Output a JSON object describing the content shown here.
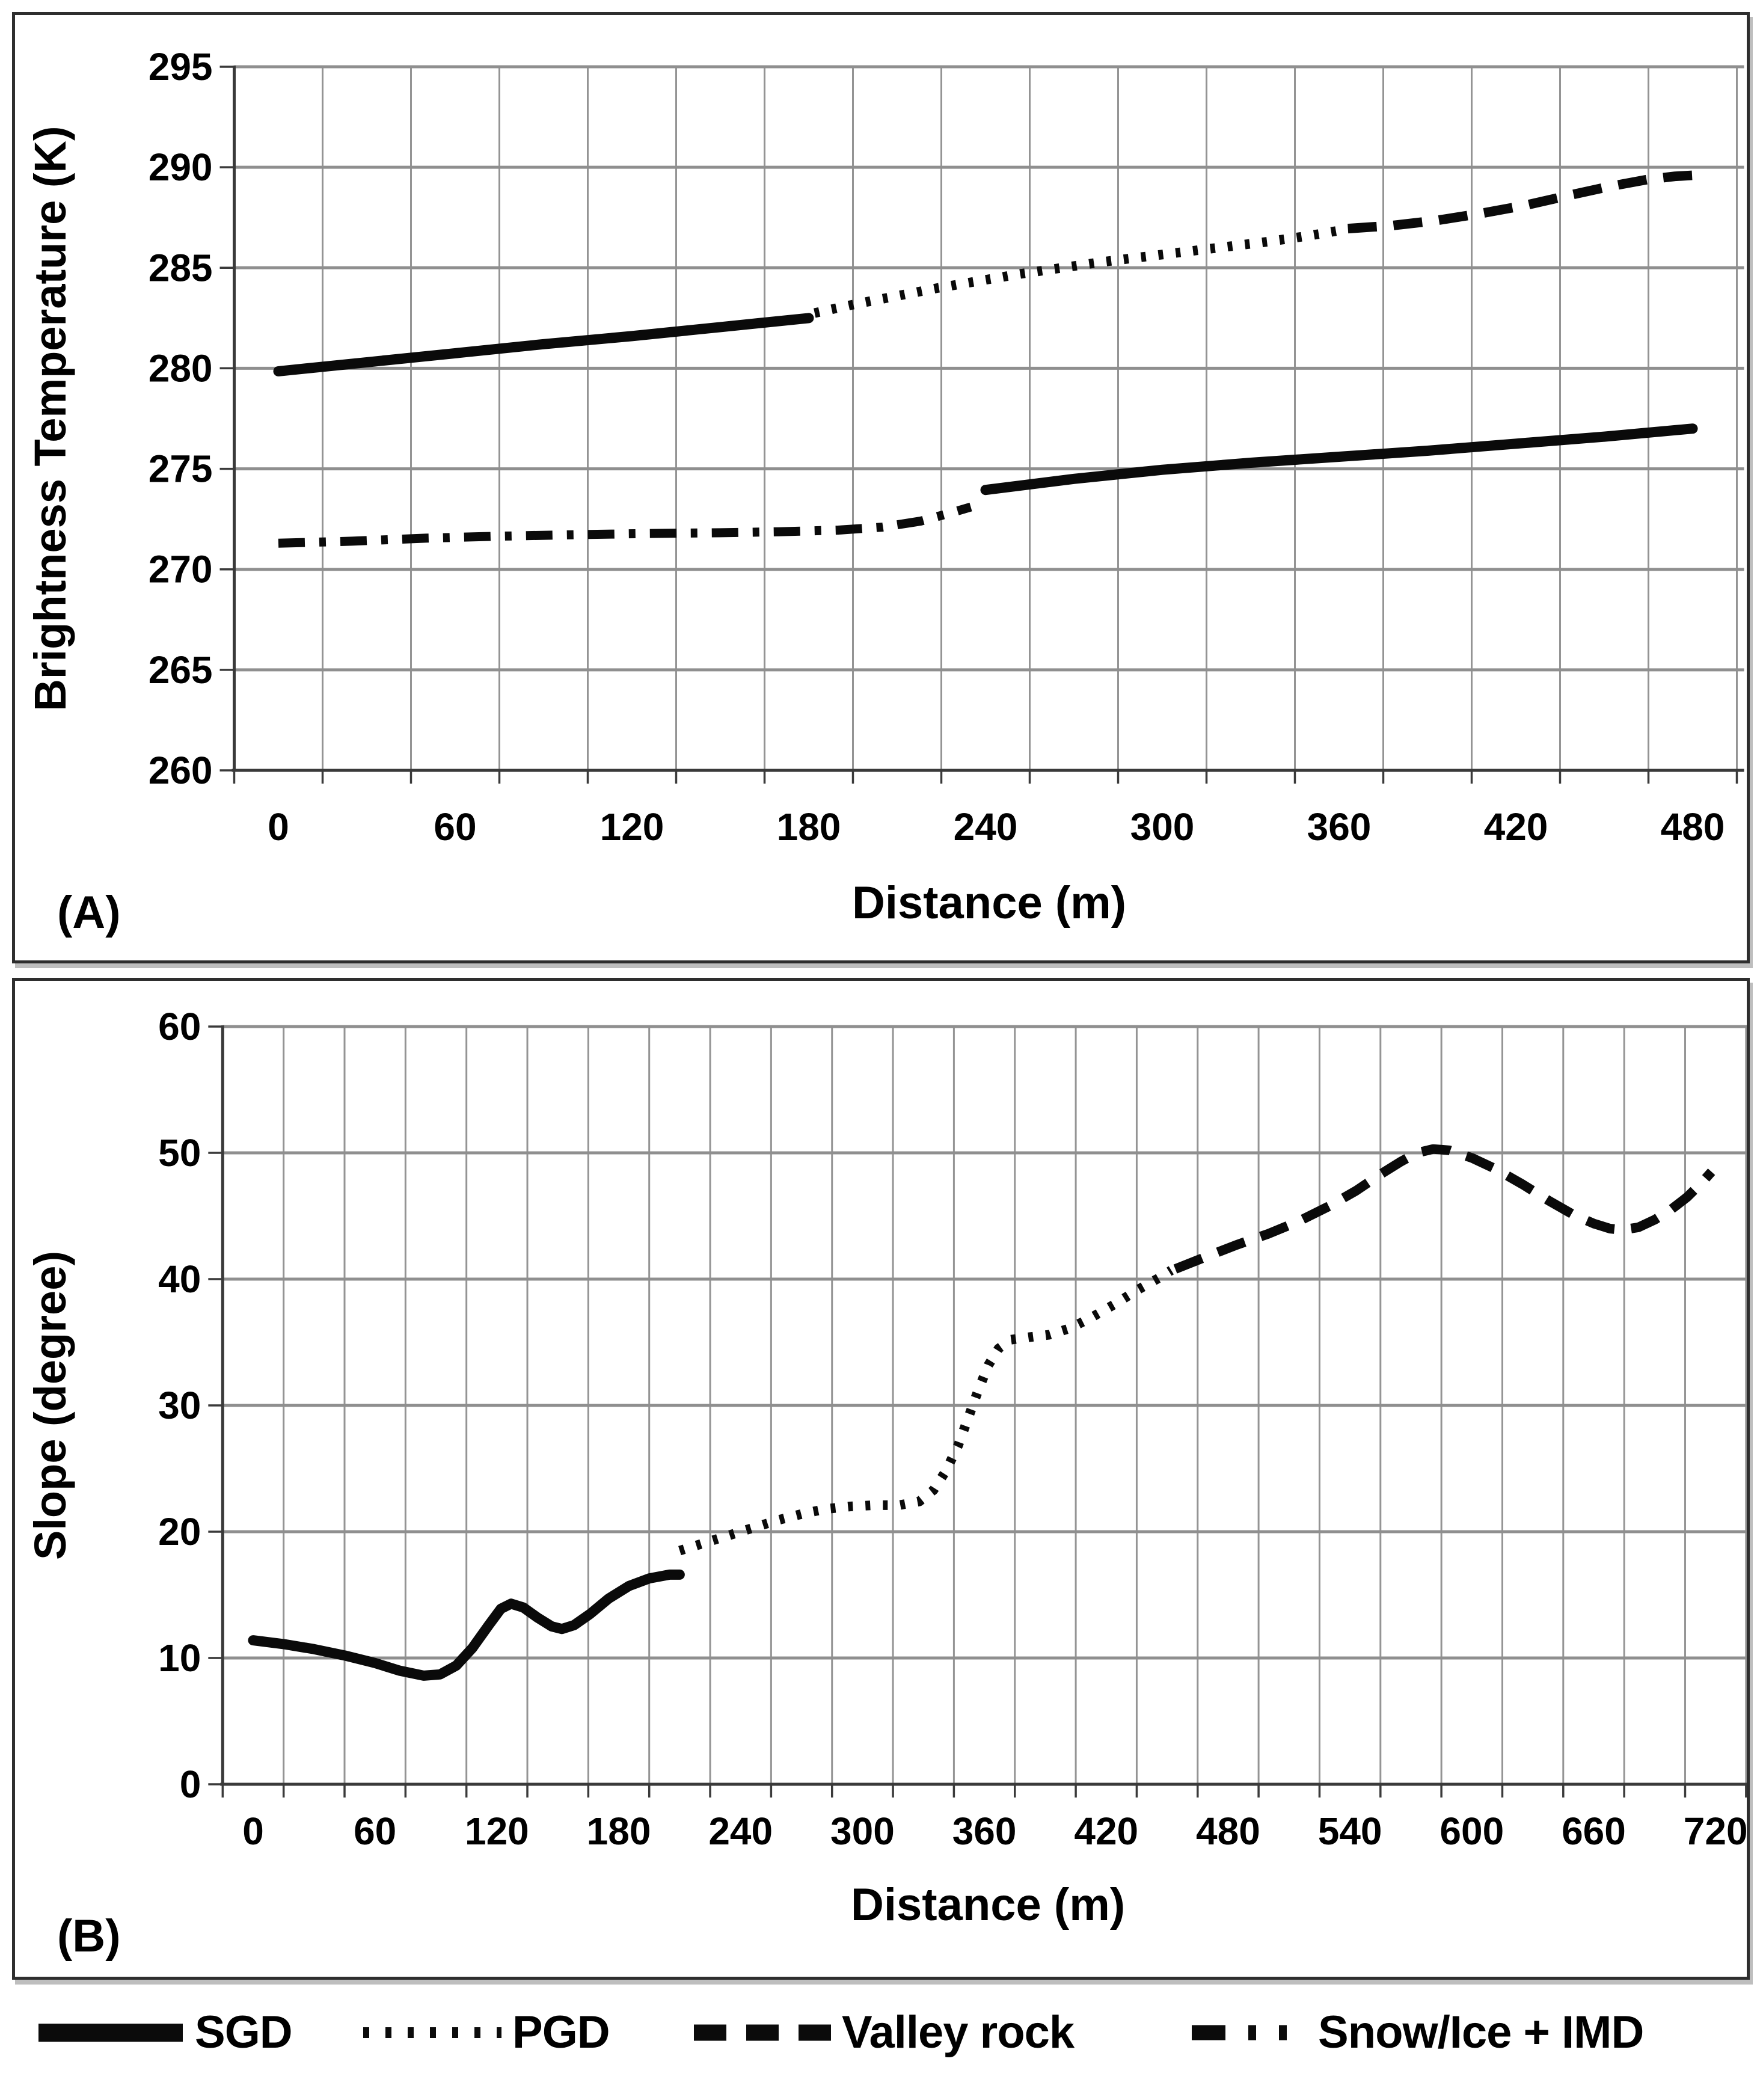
{
  "figure": {
    "panel_a_label": "(A)",
    "panel_b_label": "(B)"
  },
  "colors": {
    "line": "#0a0a0a",
    "grid_major": "#8f8f8f",
    "grid_minor": "#949494",
    "axis": "#3a3a3a",
    "frame": "#2e2e2e",
    "text": "#000000"
  },
  "legend": {
    "items": [
      {
        "label": "SGD",
        "style": "solid"
      },
      {
        "label": "PGD",
        "style": "dotted"
      },
      {
        "label": "Valley rock",
        "style": "dashed"
      },
      {
        "label": "Snow/Ice + IMD",
        "style": "dashdot"
      }
    ]
  },
  "chart_data": [
    {
      "panel_label": "(A)",
      "type": "line",
      "title": "",
      "xlabel": "Distance (m)",
      "ylabel": "Brightness Temperature (K)",
      "xlim": [
        -15,
        495
      ],
      "ylim": [
        260,
        295
      ],
      "xticks": [
        0,
        60,
        120,
        180,
        240,
        300,
        360,
        420,
        480
      ],
      "yticks": [
        260,
        265,
        270,
        275,
        280,
        285,
        290,
        295
      ],
      "grid": {
        "on": true,
        "x_minor_step_m": 30
      },
      "legend_position": "below-figure",
      "series": [
        {
          "name": "SGD",
          "style": "solid",
          "segments": [
            [
              [
                0,
                279.85
              ],
              [
                30,
                280.3
              ],
              [
                60,
                280.75
              ],
              [
                90,
                281.2
              ],
              [
                120,
                281.6
              ],
              [
                150,
                282.05
              ],
              [
                180,
                282.5
              ]
            ],
            [
              [
                240,
                273.95
              ],
              [
                270,
                274.5
              ],
              [
                300,
                274.95
              ],
              [
                330,
                275.3
              ],
              [
                360,
                275.6
              ],
              [
                390,
                275.9
              ],
              [
                420,
                276.25
              ],
              [
                450,
                276.6
              ],
              [
                480,
                277.0
              ]
            ]
          ]
        },
        {
          "name": "PGD",
          "style": "dotted",
          "segments": [
            [
              [
                182,
                282.75
              ],
              [
                196,
                283.2
              ],
              [
                210,
                283.6
              ],
              [
                224,
                284.0
              ],
              [
                238,
                284.35
              ],
              [
                252,
                284.7
              ],
              [
                266,
                285.0
              ],
              [
                280,
                285.3
              ],
              [
                294,
                285.55
              ],
              [
                308,
                285.8
              ],
              [
                322,
                286.05
              ],
              [
                336,
                286.3
              ],
              [
                350,
                286.6
              ],
              [
                360,
                286.85
              ]
            ]
          ]
        },
        {
          "name": "Valley rock",
          "style": "dashed",
          "segments": [
            [
              [
                363,
                286.95
              ],
              [
                378,
                287.1
              ],
              [
                393,
                287.35
              ],
              [
                408,
                287.7
              ],
              [
                423,
                288.1
              ],
              [
                438,
                288.6
              ],
              [
                452,
                289.05
              ],
              [
                465,
                289.4
              ],
              [
                474,
                289.55
              ],
              [
                480,
                289.6
              ]
            ]
          ]
        },
        {
          "name": "Snow/Ice + IMD",
          "style": "dashdot",
          "segments": [
            [
              [
                0,
                271.3
              ],
              [
                25,
                271.4
              ],
              [
                50,
                271.55
              ],
              [
                75,
                271.65
              ],
              [
                100,
                271.72
              ],
              [
                125,
                271.78
              ],
              [
                150,
                271.82
              ],
              [
                170,
                271.87
              ],
              [
                190,
                271.95
              ],
              [
                205,
                272.1
              ],
              [
                218,
                272.4
              ],
              [
                228,
                272.8
              ],
              [
                235,
                273.1
              ]
            ]
          ]
        }
      ]
    },
    {
      "panel_label": "(B)",
      "type": "line",
      "title": "",
      "xlabel": "Distance (m)",
      "ylabel": "Slope (degree)",
      "xlim": [
        -15,
        735
      ],
      "ylim": [
        0,
        60
      ],
      "xticks": [
        0,
        60,
        120,
        180,
        240,
        300,
        360,
        420,
        480,
        540,
        600,
        660,
        720
      ],
      "yticks": [
        0,
        10,
        20,
        30,
        40,
        50,
        60
      ],
      "grid": {
        "on": true,
        "x_minor_step_m": 30
      },
      "legend_position": "below-figure",
      "series": [
        {
          "name": "SGD",
          "style": "solid",
          "segments": [
            [
              [
                0,
                11.4
              ],
              [
                15,
                11.1
              ],
              [
                30,
                10.7
              ],
              [
                45,
                10.2
              ],
              [
                60,
                9.6
              ],
              [
                72,
                9.0
              ],
              [
                84,
                8.6
              ],
              [
                92,
                8.7
              ],
              [
                100,
                9.4
              ],
              [
                108,
                10.8
              ],
              [
                116,
                12.6
              ],
              [
                122,
                13.9
              ],
              [
                127,
                14.3
              ],
              [
                133,
                14.0
              ],
              [
                140,
                13.2
              ],
              [
                147,
                12.5
              ],
              [
                152,
                12.3
              ],
              [
                158,
                12.6
              ],
              [
                166,
                13.5
              ],
              [
                175,
                14.7
              ],
              [
                185,
                15.7
              ],
              [
                195,
                16.3
              ],
              [
                205,
                16.6
              ],
              [
                210,
                16.6
              ]
            ]
          ]
        },
        {
          "name": "PGD",
          "style": "dotted",
          "segments": [
            [
              [
                210,
                18.5
              ],
              [
                222,
                19.1
              ],
              [
                234,
                19.7
              ],
              [
                246,
                20.3
              ],
              [
                258,
                20.9
              ],
              [
                270,
                21.4
              ],
              [
                282,
                21.8
              ],
              [
                294,
                22.0
              ],
              [
                306,
                22.1
              ],
              [
                318,
                22.1
              ],
              [
                328,
                22.4
              ],
              [
                335,
                23.3
              ],
              [
                341,
                24.8
              ],
              [
                347,
                26.8
              ],
              [
                352,
                29.0
              ],
              [
                357,
                31.2
              ],
              [
                362,
                33.2
              ],
              [
                367,
                34.5
              ],
              [
                373,
                35.2
              ],
              [
                382,
                35.4
              ],
              [
                392,
                35.6
              ],
              [
                402,
                36.1
              ],
              [
                412,
                36.9
              ],
              [
                424,
                38.0
              ],
              [
                436,
                39.2
              ],
              [
                446,
                40.1
              ],
              [
                452,
                40.7
              ]
            ]
          ]
        },
        {
          "name": "Valley rock",
          "style": "dashed",
          "segments": [
            [
              [
                454,
                40.8
              ],
              [
                468,
                41.7
              ],
              [
                484,
                42.7
              ],
              [
                500,
                43.6
              ],
              [
                515,
                44.6
              ],
              [
                530,
                45.8
              ],
              [
                543,
                47.0
              ],
              [
                555,
                48.3
              ],
              [
                565,
                49.3
              ],
              [
                573,
                50.0
              ],
              [
                581,
                50.3
              ],
              [
                589,
                50.2
              ],
              [
                600,
                49.6
              ],
              [
                612,
                48.7
              ],
              [
                625,
                47.5
              ],
              [
                638,
                46.2
              ],
              [
                650,
                45.1
              ],
              [
                660,
                44.4
              ],
              [
                668,
                44.0
              ],
              [
                674,
                43.9
              ],
              [
                682,
                44.1
              ],
              [
                690,
                44.7
              ],
              [
                698,
                45.5
              ],
              [
                706,
                46.5
              ],
              [
                713,
                47.6
              ],
              [
                718,
                48.5
              ]
            ]
          ]
        }
      ]
    }
  ]
}
